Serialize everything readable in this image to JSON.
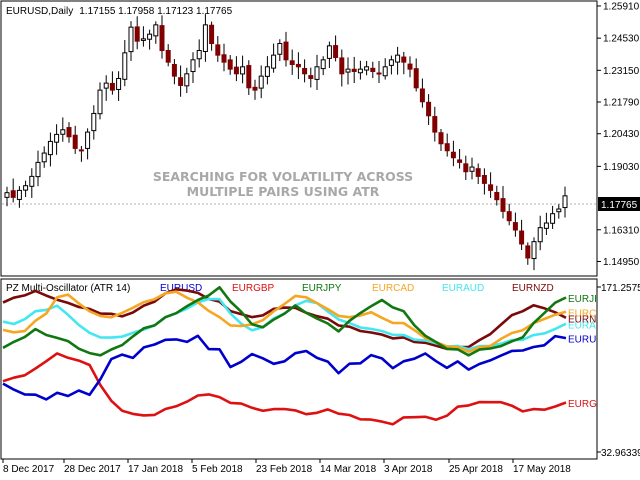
{
  "watermark": {
    "line1": "SEARCHING FOR VOLATILITY ACROSS",
    "line2": "MULTIPLE PAIRS USING ATR"
  },
  "chart_data": [
    {
      "type": "candlestick",
      "symbol": "EURUSD,Daily",
      "ohlc_header": "1.17155 1.17958 1.17123 1.17765",
      "current_price": 1.17765,
      "current_price_label": "1.17765",
      "ylim": [
        1.1437,
        1.2608
      ],
      "ytick_values": [
        1.2591,
        1.2453,
        1.2315,
        1.2179,
        1.2043,
        1.1903,
        1.1631,
        1.1495
      ],
      "ytick_labels": [
        "1.25910",
        "1.24530",
        "1.23150",
        "1.21790",
        "1.20430",
        "1.19030",
        "1.16310",
        "1.14950"
      ],
      "colors": {
        "up": "#000000",
        "down": "#800000",
        "wick": "#000000"
      },
      "close_path": [
        1.179,
        1.177,
        1.18,
        1.182,
        1.186,
        1.192,
        1.196,
        1.201,
        1.204,
        1.206,
        1.203,
        1.198,
        1.197,
        1.205,
        1.213,
        1.223,
        1.226,
        1.223,
        1.228,
        1.239,
        1.25,
        1.244,
        1.245,
        1.247,
        1.251,
        1.24,
        1.235,
        1.229,
        1.225,
        1.23,
        1.236,
        1.24,
        1.251,
        1.243,
        1.238,
        1.235,
        1.232,
        1.23,
        1.233,
        1.224,
        1.223,
        1.229,
        1.233,
        1.238,
        1.243,
        1.236,
        1.234,
        1.233,
        1.23,
        1.228,
        1.233,
        1.236,
        1.242,
        1.237,
        1.23,
        1.232,
        1.231,
        1.232,
        1.233,
        1.231,
        1.23,
        1.233,
        1.236,
        1.238,
        1.235,
        1.232,
        1.224,
        1.218,
        1.212,
        1.205,
        1.2,
        1.197,
        1.194,
        1.192,
        1.188,
        1.19,
        1.186,
        1.183,
        1.18,
        1.176,
        1.171,
        1.167,
        1.163,
        1.157,
        1.151,
        1.158,
        1.164,
        1.166,
        1.17,
        1.172,
        1.17765
      ]
    },
    {
      "type": "line",
      "title": "PZ Multi-Oscillator (ATR 14)",
      "max_label": "171.2575",
      "min_label": "32.96339",
      "ylim": [
        32.96339,
        171.2575
      ],
      "colors": {
        "EURUSD": "#0000cc",
        "EURGBP": "#dd1111",
        "EURJPY": "#117711",
        "EURCAD": "#f5a623",
        "EURAUD": "#44e6f0",
        "EURNZD": "#7a0a0a"
      },
      "series": [
        {
          "name": "EURUSD",
          "end_label": "EURU",
          "values": [
            90,
            85,
            82,
            80,
            78,
            82,
            80,
            85,
            80,
            95,
            110,
            115,
            112,
            120,
            124,
            126,
            128,
            125,
            130,
            120,
            118,
            105,
            108,
            115,
            112,
            106,
            110,
            115,
            118,
            112,
            108,
            100,
            106,
            108,
            114,
            111,
            104,
            108,
            112,
            115,
            109,
            104,
            108,
            103,
            106,
            110,
            114,
            117,
            119,
            120,
            123,
            130,
            128
          ]
        },
        {
          "name": "EURGBP",
          "end_label": "EURG",
          "values": [
            92,
            95,
            98,
            102,
            110,
            115,
            112,
            110,
            105,
            90,
            75,
            68,
            65,
            63,
            65,
            68,
            72,
            75,
            80,
            82,
            78,
            75,
            73,
            70,
            68,
            68,
            70,
            67,
            65,
            66,
            68,
            66,
            63,
            61,
            60,
            58,
            57,
            61,
            63,
            62,
            60,
            64,
            70,
            73,
            74,
            75,
            75,
            71,
            68,
            68,
            69,
            71,
            74
          ]
        },
        {
          "name": "EURJPY",
          "end_label": "EURJI",
          "values": [
            120,
            125,
            130,
            135,
            132,
            128,
            126,
            120,
            115,
            115,
            118,
            123,
            130,
            136,
            140,
            145,
            150,
            155,
            160,
            165,
            170,
            160,
            150,
            140,
            138,
            143,
            150,
            155,
            150,
            145,
            140,
            135,
            142,
            150,
            155,
            160,
            155,
            150,
            140,
            130,
            125,
            120,
            118,
            115,
            118,
            120,
            122,
            125,
            130,
            140,
            150,
            158,
            162
          ]
        },
        {
          "name": "EURCAD",
          "end_label": "EURC",
          "values": [
            135,
            133,
            135,
            142,
            150,
            162,
            165,
            158,
            150,
            148,
            145,
            150,
            154,
            158,
            162,
            165,
            168,
            162,
            158,
            152,
            145,
            140,
            138,
            140,
            144,
            150,
            158,
            163,
            163,
            158,
            152,
            148,
            145,
            148,
            150,
            145,
            142,
            140,
            136,
            128,
            125,
            122,
            120,
            118,
            120,
            122,
            128,
            132,
            136,
            140,
            145,
            148,
            150
          ]
        },
        {
          "name": "EURAUD",
          "end_label": "EURA",
          "values": [
            142,
            140,
            145,
            150,
            153,
            155,
            148,
            140,
            132,
            130,
            128,
            130,
            133,
            135,
            140,
            145,
            150,
            153,
            158,
            162,
            160,
            150,
            140,
            135,
            138,
            144,
            150,
            155,
            160,
            158,
            150,
            145,
            140,
            138,
            136,
            134,
            132,
            130,
            128,
            126,
            124,
            122,
            121,
            120,
            121,
            122,
            124,
            126,
            128,
            130,
            133,
            136,
            140
          ]
        },
        {
          "name": "EURNZD",
          "end_label": "EURN",
          "values": [
            158,
            162,
            165,
            167,
            165,
            160,
            158,
            155,
            152,
            150,
            148,
            147,
            150,
            155,
            160,
            165,
            170,
            168,
            166,
            162,
            158,
            152,
            148,
            146,
            148,
            152,
            155,
            153,
            150,
            147,
            144,
            140,
            137,
            135,
            133,
            131,
            129,
            128,
            126,
            124,
            122,
            120,
            120,
            122,
            126,
            132,
            140,
            147,
            152,
            155,
            154,
            150,
            145
          ]
        }
      ]
    }
  ],
  "x_axis": {
    "tick_labels": [
      "8 Dec 2017",
      "28 Dec 2017",
      "17 Jan 2018",
      "5 Feb 2018",
      "23 Feb 2018",
      "14 Mar 2018",
      "3 Apr 2018",
      "25 Apr 2018",
      "17 May 2018"
    ]
  }
}
